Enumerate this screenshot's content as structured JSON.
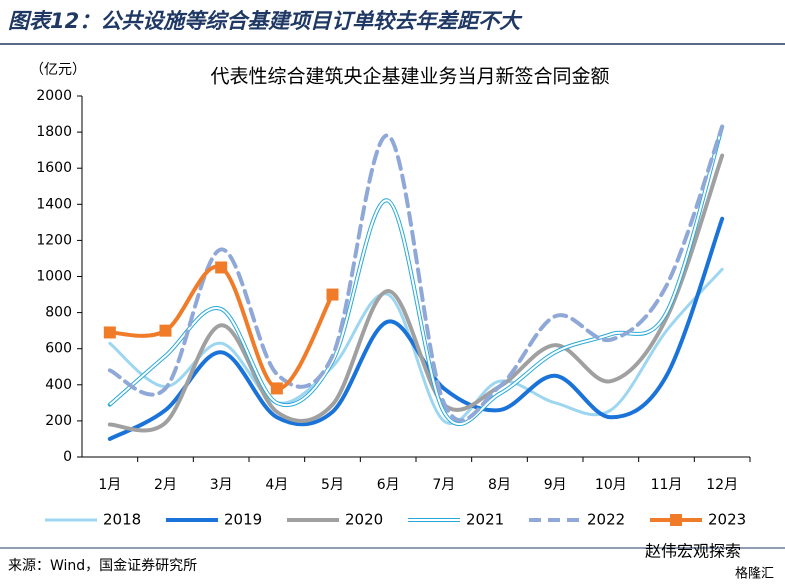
{
  "chart_data": {
    "type": "line",
    "header": "图表12：公共设施等综合基建项目订单较去年差距不大",
    "title": "代表性综合建筑央企基建业务当月新签合同金额",
    "y_label": "（亿元）",
    "source": "来源：Wind，国金证券研究所",
    "watermark": "赵伟宏观探索",
    "watermark2": "格隆汇",
    "categories": [
      "1月",
      "2月",
      "3月",
      "4月",
      "5月",
      "6月",
      "7月",
      "8月",
      "9月",
      "10月",
      "11月",
      "12月"
    ],
    "ylim": [
      0,
      2000
    ],
    "yticks": [
      0,
      200,
      400,
      600,
      800,
      1000,
      1200,
      1400,
      1600,
      1800,
      2000
    ],
    "series": [
      {
        "name": "2018",
        "color": "#9dd6f0",
        "width": 3,
        "style": "solid",
        "values": [
          630,
          390,
          630,
          300,
          500,
          900,
          200,
          420,
          300,
          260,
          700,
          1040
        ]
      },
      {
        "name": "2019",
        "color": "#1a73d9",
        "width": 4,
        "style": "solid",
        "values": [
          100,
          260,
          580,
          220,
          250,
          750,
          380,
          260,
          450,
          220,
          450,
          1320
        ]
      },
      {
        "name": "2020",
        "color": "#a0a0a0",
        "width": 4,
        "style": "solid",
        "values": [
          180,
          190,
          730,
          250,
          290,
          920,
          290,
          390,
          620,
          420,
          770,
          1670
        ]
      },
      {
        "name": "2021",
        "color": "#2aa8d8",
        "width": 4,
        "style": "double",
        "values": [
          290,
          560,
          820,
          300,
          530,
          1420,
          250,
          350,
          580,
          680,
          800,
          1830
        ]
      },
      {
        "name": "2022",
        "color": "#8fa8d8",
        "width": 4,
        "style": "dashed",
        "values": [
          480,
          380,
          1150,
          460,
          560,
          1780,
          300,
          390,
          780,
          650,
          950,
          1830
        ]
      },
      {
        "name": "2023",
        "color": "#f07c2a",
        "width": 4,
        "style": "solid",
        "marker": "square",
        "values": [
          690,
          700,
          1050,
          380,
          900,
          null,
          null,
          null,
          null,
          null,
          null,
          null
        ]
      }
    ]
  }
}
